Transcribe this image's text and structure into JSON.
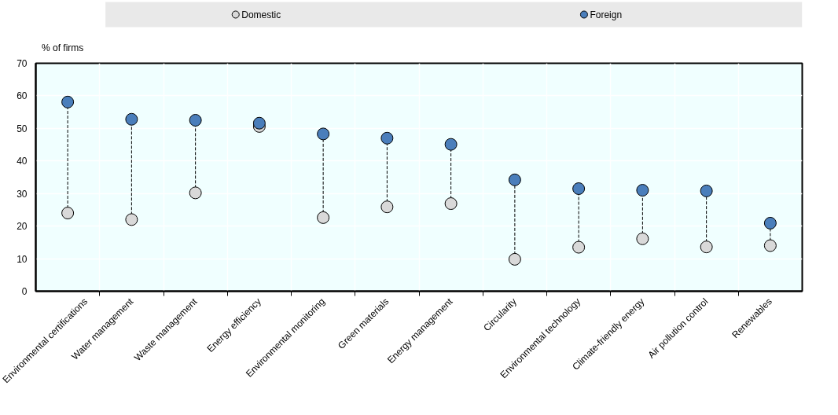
{
  "chart_data": {
    "type": "scatter",
    "ylabel": "% of firms",
    "categories": [
      "Environmental certifications",
      "Water management",
      "Waste management",
      "Energy efficiency",
      "Environmental monitoring",
      "Green materials",
      "Energy management",
      "Circularity",
      "Environmental technology",
      "Climate-friendly energy",
      "Air pollution control",
      "Renewables"
    ],
    "series": [
      {
        "name": "Domestic",
        "color": "#d9d9d9",
        "values": [
          24.0,
          22.0,
          30.2,
          50.6,
          22.6,
          25.9,
          26.9,
          9.8,
          13.5,
          16.1,
          13.6,
          14.0
        ]
      },
      {
        "name": "Foreign",
        "color": "#4a7ebb",
        "values": [
          58.1,
          52.8,
          52.5,
          51.6,
          48.3,
          47.0,
          45.1,
          34.2,
          31.5,
          31.0,
          30.8,
          20.9
        ]
      }
    ],
    "ylim": [
      0,
      70
    ],
    "yticks": [
      0,
      10,
      20,
      30,
      40,
      50,
      60,
      70
    ],
    "grid": true,
    "legend": "top",
    "marker": "circle",
    "line_style": "dashed"
  }
}
